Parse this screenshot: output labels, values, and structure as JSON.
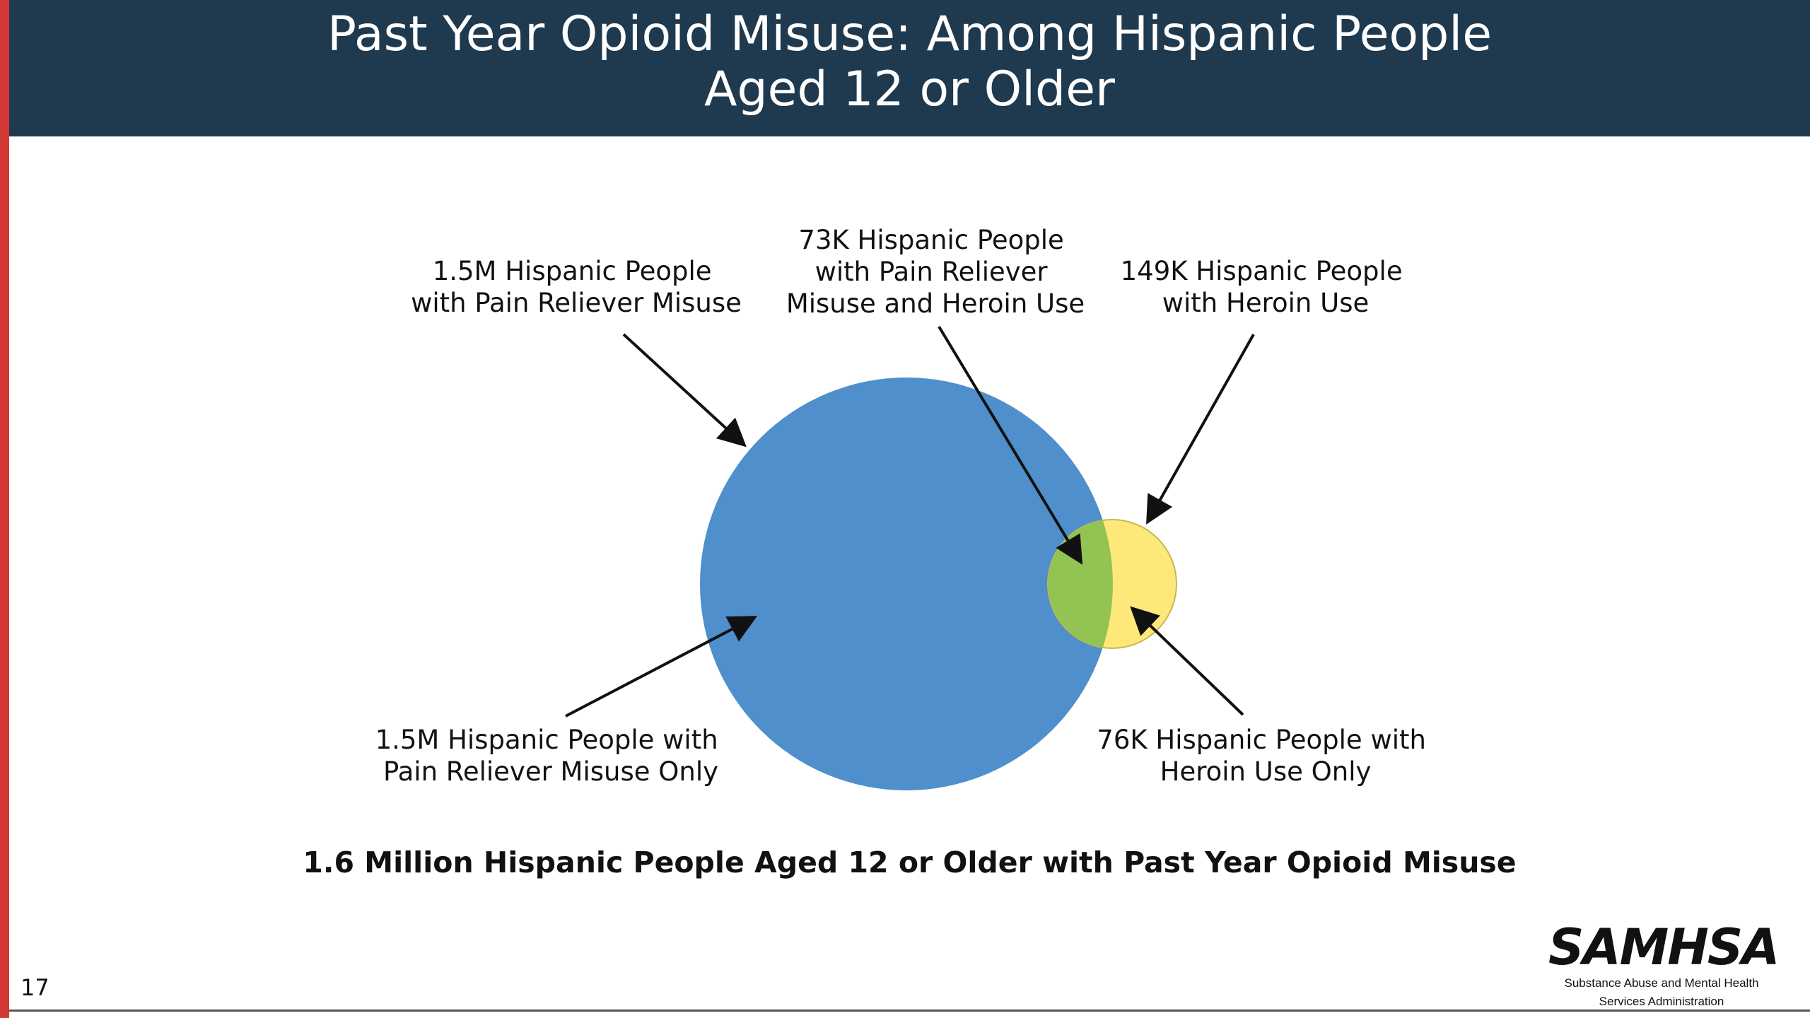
{
  "title": {
    "line1": "Past Year Opioid Misuse: Among Hispanic People",
    "line2": "Aged 12 or Older"
  },
  "venn": {
    "pain_reliever_set": {
      "label_line1": "1.5M Hispanic People",
      "label_line2": "with Pain Reliever Misuse",
      "color": "#4e8fcc"
    },
    "pain_reliever_only": {
      "label_line1": "1.5M Hispanic People with",
      "label_line2": "Pain Reliever Misuse Only"
    },
    "overlap": {
      "label_line1": "73K Hispanic People",
      "label_line2": "with Pain Reliever",
      "label_line3": "Misuse and Heroin Use",
      "color": "#92c353"
    },
    "heroin_set": {
      "label_line1": "149K Hispanic People",
      "label_line2": "with Heroin Use",
      "color": "#fde97a"
    },
    "heroin_only": {
      "label_line1": "76K Hispanic People with",
      "label_line2": "Heroin Use Only"
    }
  },
  "total_caption": "1.6 Million Hispanic People Aged 12 or Older with Past Year Opioid Misuse",
  "page_number": "17",
  "logo": {
    "name": "SAMHSA",
    "subtitle_line1": "Substance Abuse and Mental Health",
    "subtitle_line2": "Services Administration"
  },
  "colors": {
    "title_band": "#1f394e",
    "left_accent": "#d33a35"
  }
}
